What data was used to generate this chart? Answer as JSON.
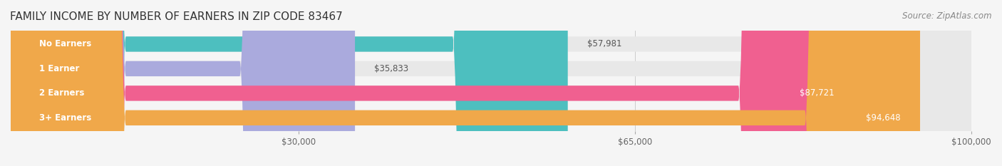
{
  "title": "FAMILY INCOME BY NUMBER OF EARNERS IN ZIP CODE 83467",
  "source": "Source: ZipAtlas.com",
  "categories": [
    "No Earners",
    "1 Earner",
    "2 Earners",
    "3+ Earners"
  ],
  "values": [
    57981,
    35833,
    87721,
    94648
  ],
  "bar_colors": [
    "#4dbfbf",
    "#aaaadd",
    "#f06090",
    "#f0a84a"
  ],
  "label_colors": [
    "#333333",
    "#333333",
    "#ffffff",
    "#ffffff"
  ],
  "x_max": 100000,
  "x_ticks": [
    30000,
    65000,
    100000
  ],
  "x_tick_labels": [
    "$30,000",
    "$65,000",
    "$100,000"
  ],
  "value_labels": [
    "$57,981",
    "$35,833",
    "$87,721",
    "$94,648"
  ],
  "bg_color": "#f5f5f5",
  "bar_bg_color": "#e8e8e8",
  "title_fontsize": 11,
  "source_fontsize": 8.5,
  "label_fontsize": 8.5,
  "value_fontsize": 8.5,
  "tick_fontsize": 8.5
}
